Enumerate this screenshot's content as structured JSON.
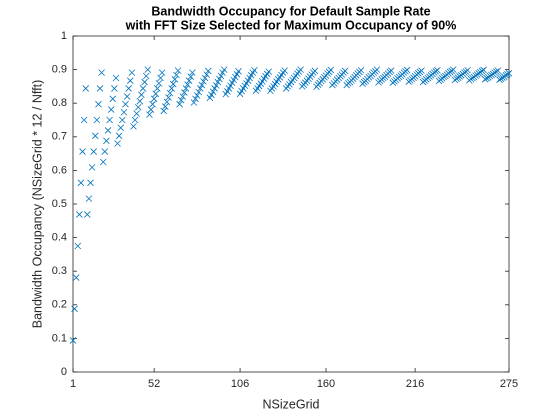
{
  "chart_data": {
    "type": "scatter",
    "title": [
      "Bandwidth Occupancy for Default Sample Rate",
      "with FFT Size Selected for Maximum Occupancy of 90%"
    ],
    "xlabel": "NSizeGrid",
    "ylabel": "Bandwidth Occupancy (NSizeGrid * 12 / Nfft)",
    "xlim": [
      1,
      275
    ],
    "ylim": [
      0,
      1
    ],
    "xticks": [
      1,
      52,
      106,
      160,
      216,
      275
    ],
    "yticks": [
      0,
      0.1,
      0.2,
      0.3,
      0.4,
      0.5,
      0.6,
      0.7,
      0.8,
      0.9,
      1
    ],
    "grid": false,
    "marker": "x",
    "series": [
      {
        "color": "#0072bd",
        "x": [
          1,
          2,
          3,
          4,
          5,
          6,
          7,
          8,
          9,
          10,
          11,
          12,
          13,
          14,
          15,
          16,
          17,
          18,
          19,
          20,
          21,
          22,
          23,
          24,
          25,
          26,
          27,
          28,
          29,
          30,
          31,
          32,
          33,
          34,
          35,
          36,
          37,
          38,
          39,
          40,
          41,
          42,
          43,
          44,
          45,
          46,
          47,
          48,
          49,
          50,
          51,
          52,
          53,
          54,
          55,
          56,
          57,
          58,
          59,
          60,
          61,
          62,
          63,
          64,
          65,
          66,
          67,
          68,
          69,
          70,
          71,
          72,
          73,
          74,
          75,
          76,
          77,
          78,
          79,
          80,
          81,
          82,
          83,
          84,
          85,
          86,
          87,
          88,
          89,
          90,
          91,
          92,
          93,
          94,
          95,
          96,
          97,
          98,
          99,
          100,
          101,
          102,
          103,
          104,
          105,
          106,
          107,
          108,
          109,
          110,
          111,
          112,
          113,
          114,
          115,
          116,
          117,
          118,
          119,
          120,
          121,
          122,
          123,
          124,
          125,
          126,
          127,
          128,
          129,
          130,
          131,
          132,
          133,
          134,
          135,
          136,
          137,
          138,
          139,
          140,
          141,
          142,
          143,
          144,
          145,
          146,
          147,
          148,
          149,
          150,
          151,
          152,
          153,
          154,
          155,
          156,
          157,
          158,
          159,
          160,
          161,
          162,
          163,
          164,
          165,
          166,
          167,
          168,
          169,
          170,
          171,
          172,
          173,
          174,
          175,
          176,
          177,
          178,
          179,
          180,
          181,
          182,
          183,
          184,
          185,
          186,
          187,
          188,
          189,
          190,
          191,
          192,
          193,
          194,
          195,
          196,
          197,
          198,
          199,
          200,
          201,
          202,
          203,
          204,
          205,
          206,
          207,
          208,
          209,
          210,
          211,
          212,
          213,
          214,
          215,
          216,
          217,
          218,
          219,
          220,
          221,
          222,
          223,
          224,
          225,
          226,
          227,
          228,
          229,
          230,
          231,
          232,
          233,
          234,
          235,
          236,
          237,
          238,
          239,
          240,
          241,
          242,
          243,
          244,
          245,
          246,
          247,
          248,
          249,
          250,
          251,
          252,
          253,
          254,
          255,
          256,
          257,
          258,
          259,
          260,
          261,
          262,
          263,
          264,
          265,
          266,
          267,
          268,
          269,
          270,
          271,
          272,
          273,
          274,
          275
        ],
        "values": [
          0.094,
          0.188,
          0.281,
          0.375,
          0.469,
          0.563,
          0.656,
          0.75,
          0.844,
          0.469,
          0.516,
          0.563,
          0.609,
          0.656,
          0.703,
          0.75,
          0.797,
          0.844,
          0.891,
          0.625,
          0.656,
          0.688,
          0.719,
          0.75,
          0.781,
          0.813,
          0.844,
          0.875,
          0.68,
          0.703,
          0.727,
          0.75,
          0.773,
          0.797,
          0.82,
          0.844,
          0.867,
          0.891,
          0.731,
          0.75,
          0.769,
          0.788,
          0.806,
          0.825,
          0.844,
          0.863,
          0.881,
          0.9,
          0.766,
          0.781,
          0.797,
          0.813,
          0.828,
          0.844,
          0.859,
          0.875,
          0.891,
          0.777,
          0.79,
          0.804,
          0.817,
          0.83,
          0.844,
          0.857,
          0.871,
          0.884,
          0.897,
          0.797,
          0.809,
          0.82,
          0.832,
          0.844,
          0.855,
          0.867,
          0.879,
          0.891,
          0.802,
          0.813,
          0.823,
          0.833,
          0.844,
          0.854,
          0.865,
          0.875,
          0.885,
          0.896,
          0.816,
          0.825,
          0.834,
          0.844,
          0.853,
          0.863,
          0.872,
          0.881,
          0.891,
          0.9,
          0.827,
          0.835,
          0.844,
          0.852,
          0.861,
          0.869,
          0.878,
          0.886,
          0.895,
          0.828,
          0.836,
          0.844,
          0.852,
          0.859,
          0.867,
          0.875,
          0.883,
          0.891,
          0.898,
          0.837,
          0.844,
          0.851,
          0.858,
          0.865,
          0.873,
          0.88,
          0.887,
          0.894,
          0.837,
          0.844,
          0.85,
          0.857,
          0.864,
          0.871,
          0.877,
          0.884,
          0.891,
          0.897,
          0.844,
          0.85,
          0.856,
          0.863,
          0.869,
          0.875,
          0.881,
          0.888,
          0.894,
          0.9,
          0.85,
          0.855,
          0.861,
          0.867,
          0.873,
          0.879,
          0.885,
          0.891,
          0.896,
          0.849,
          0.855,
          0.86,
          0.866,
          0.871,
          0.877,
          0.882,
          0.888,
          0.893,
          0.899,
          0.854,
          0.859,
          0.865,
          0.87,
          0.875,
          0.88,
          0.885,
          0.891,
          0.896,
          0.854,
          0.859,
          0.863,
          0.868,
          0.873,
          0.878,
          0.883,
          0.888,
          0.893,
          0.898,
          0.858,
          0.863,
          0.867,
          0.872,
          0.877,
          0.881,
          0.886,
          0.891,
          0.895,
          0.9,
          0.862,
          0.866,
          0.871,
          0.875,
          0.879,
          0.884,
          0.888,
          0.893,
          0.897,
          0.861,
          0.865,
          0.869,
          0.874,
          0.878,
          0.882,
          0.886,
          0.891,
          0.895,
          0.899,
          0.864,
          0.868,
          0.872,
          0.876,
          0.88,
          0.885,
          0.889,
          0.893,
          0.897,
          0.863,
          0.867,
          0.871,
          0.875,
          0.879,
          0.883,
          0.887,
          0.891,
          0.895,
          0.898,
          0.866,
          0.87,
          0.874,
          0.878,
          0.881,
          0.885,
          0.889,
          0.893,
          0.896,
          0.9,
          0.869,
          0.873,
          0.876,
          0.88,
          0.883,
          0.887,
          0.891,
          0.894,
          0.898,
          0.868,
          0.872,
          0.875,
          0.878,
          0.882,
          0.885,
          0.889,
          0.892,
          0.896,
          0.899,
          0.871,
          0.874,
          0.877,
          0.881,
          0.884,
          0.887,
          0.891,
          0.894,
          0.897,
          0.87,
          0.873,
          0.876,
          0.879,
          0.883,
          0.886,
          0.889
        ]
      }
    ]
  }
}
